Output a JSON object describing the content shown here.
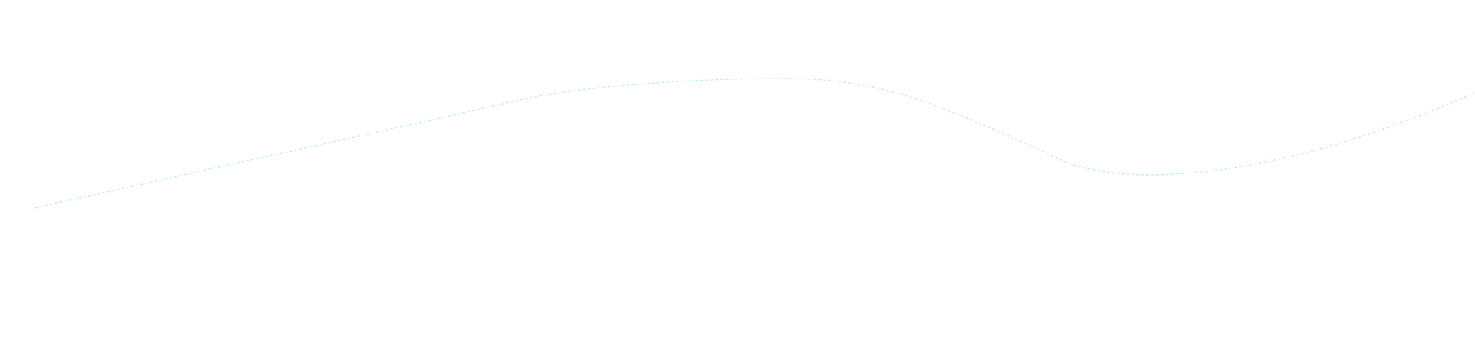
{
  "curve": {
    "stroke_color": "#bfe9fb",
    "style": "dashed"
  }
}
